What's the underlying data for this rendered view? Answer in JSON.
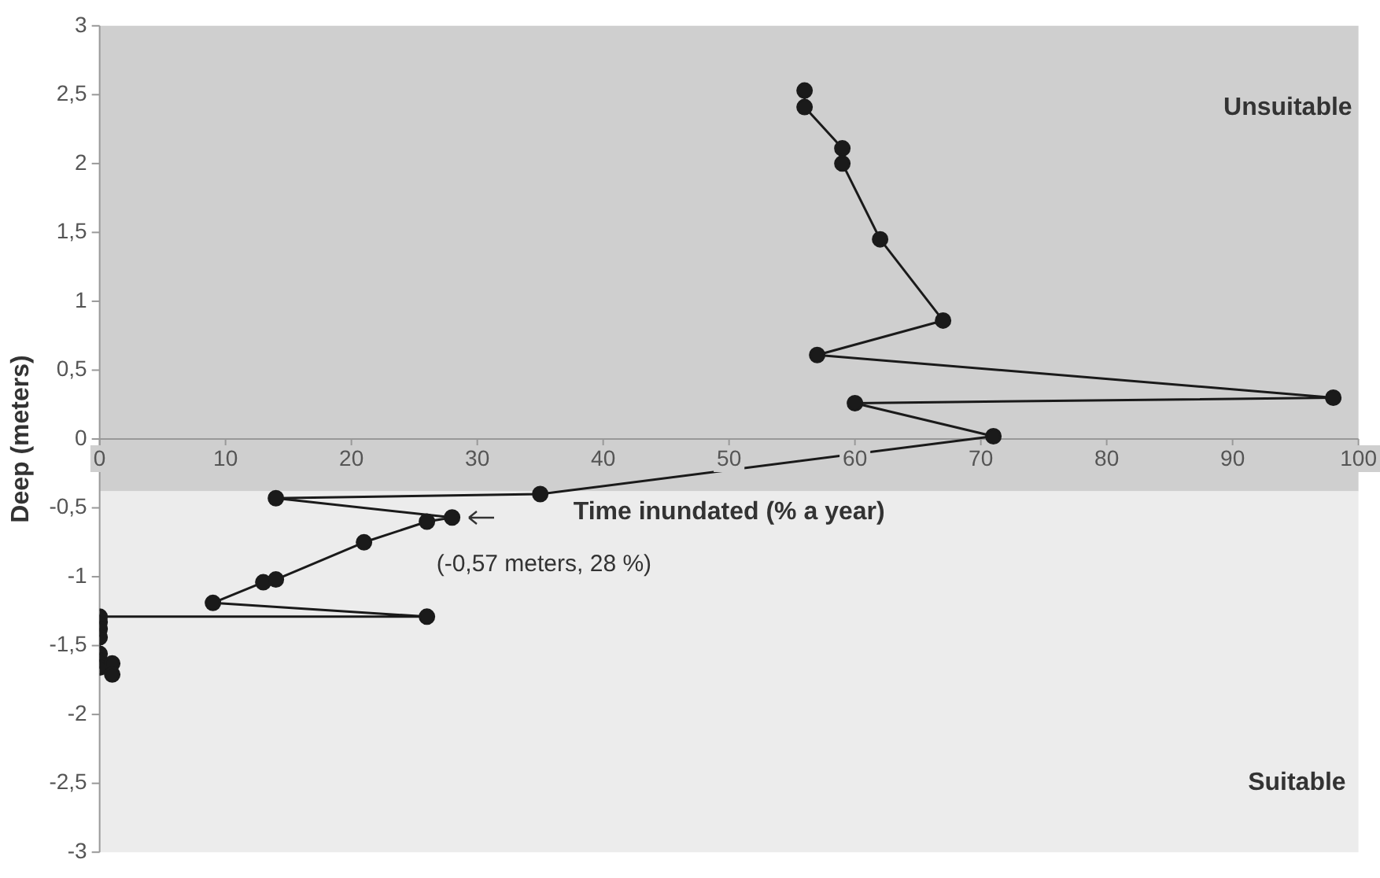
{
  "chart_data": {
    "type": "line",
    "xlabel": "Time inundated (% a year)",
    "ylabel": "Deep (meters)",
    "xlim": [
      0,
      100
    ],
    "xticks": [
      0,
      10,
      20,
      30,
      40,
      50,
      60,
      70,
      80,
      90,
      100
    ],
    "ylim": [
      -3,
      3
    ],
    "yticks": [
      -3,
      {
        "value": -2.5,
        "label": "-2,5"
      },
      -2,
      {
        "value": -1.5,
        "label": "-1,5"
      },
      -1,
      {
        "value": -0.5,
        "label": "-0,5"
      },
      0,
      {
        "value": 0.5,
        "label": "0,5"
      },
      1,
      {
        "value": 1.5,
        "label": "1,5"
      },
      2,
      {
        "value": 2.5,
        "label": "2,5"
      },
      3
    ],
    "grid": false,
    "legend": false,
    "marker": "circle",
    "line_style": "solid",
    "series": [
      {
        "color": "#1a1a1a",
        "x": [
          56,
          56,
          59,
          59,
          62,
          67,
          57,
          98,
          60,
          71,
          35,
          14,
          28,
          26,
          21,
          14,
          13,
          9,
          26,
          0,
          0,
          0,
          0,
          0,
          0,
          0,
          1,
          1
        ],
        "values": [
          2.53,
          2.41,
          2.11,
          2,
          1.45,
          0.86,
          0.61,
          0.3,
          0.26,
          0.02,
          -0.4,
          -0.43,
          -0.57,
          -0.6,
          -0.75,
          -1.02,
          -1.04,
          -1.19,
          -1.29,
          -1.29,
          -1.33,
          -1.38,
          -1.44,
          -1.56,
          -1.61,
          -1.66,
          -1.63,
          -1.71
        ]
      }
    ],
    "bands": [
      {
        "axis": "y",
        "from": -0.38,
        "to": 3,
        "label": "Unsuitable",
        "color": "#cfcfcf"
      },
      {
        "axis": "y",
        "from": -3,
        "to": -0.38,
        "label": "Suitable",
        "color": "#ececec"
      }
    ],
    "annotations": [
      {
        "text": "(-0,57 meters, 28 %)",
        "x": 28,
        "y": -0.57
      }
    ]
  }
}
